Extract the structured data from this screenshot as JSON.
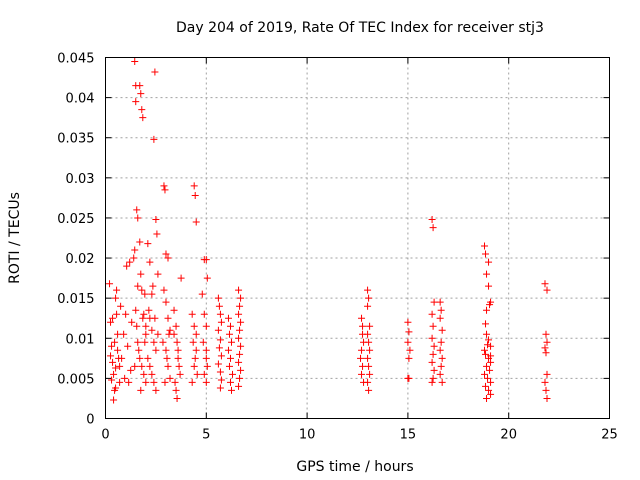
{
  "chart_data": {
    "type": "scatter",
    "title": "Day 204 of 2019, Rate Of TEC Index for receiver stj3",
    "xlabel": "GPS time / hours",
    "ylabel": "ROTI / TECUs",
    "xlim": [
      0,
      25
    ],
    "ylim": [
      0,
      0.045
    ],
    "x_ticks": [
      0,
      5,
      10,
      15,
      20,
      25
    ],
    "x_tick_labels": [
      "0",
      "5",
      "10",
      "15",
      "20",
      "25"
    ],
    "y_ticks": [
      0,
      0.005,
      0.01,
      0.015,
      0.02,
      0.025,
      0.03,
      0.035,
      0.04,
      0.045
    ],
    "y_tick_labels": [
      "0",
      "0.005",
      "0.01",
      "0.015",
      "0.02",
      "0.025",
      "0.03",
      "0.035",
      "0.04",
      "0.045"
    ],
    "grid": true,
    "marker": "+",
    "color": "#ff0000",
    "series": [
      {
        "name": "ROTI",
        "points": [
          [
            0.2,
            0.0168
          ],
          [
            0.25,
            0.012
          ],
          [
            0.3,
            0.009
          ],
          [
            0.35,
            0.007
          ],
          [
            0.4,
            0.0055
          ],
          [
            0.45,
            0.0035
          ],
          [
            0.4,
            0.0023
          ],
          [
            0.5,
            0.0063
          ],
          [
            0.5,
            0.015
          ],
          [
            0.55,
            0.016
          ],
          [
            0.6,
            0.0105
          ],
          [
            0.6,
            0.0085
          ],
          [
            0.65,
            0.0075
          ],
          [
            0.7,
            0.0045
          ],
          [
            0.75,
            0.014
          ],
          [
            0.3,
            0.0048
          ],
          [
            0.45,
            0.0095
          ],
          [
            0.35,
            0.0125
          ],
          [
            0.55,
            0.013
          ],
          [
            0.7,
            0.0065
          ],
          [
            0.25,
            0.0078
          ],
          [
            0.5,
            0.0038
          ],
          [
            0.8,
            0.0075
          ],
          [
            0.9,
            0.0105
          ],
          [
            1.0,
            0.013
          ],
          [
            1.05,
            0.019
          ],
          [
            1.1,
            0.009
          ],
          [
            1.2,
            0.0195
          ],
          [
            1.25,
            0.006
          ],
          [
            1.3,
            0.012
          ],
          [
            1.15,
            0.0045
          ],
          [
            0.95,
            0.005
          ],
          [
            1.4,
            0.02
          ],
          [
            1.45,
            0.0445
          ],
          [
            1.5,
            0.0395
          ],
          [
            1.55,
            0.026
          ],
          [
            1.6,
            0.025
          ],
          [
            1.5,
            0.0415
          ],
          [
            1.45,
            0.021
          ],
          [
            1.6,
            0.0165
          ],
          [
            1.7,
            0.0415
          ],
          [
            1.75,
            0.0405
          ],
          [
            1.8,
            0.0385
          ],
          [
            1.85,
            0.0375
          ],
          [
            1.7,
            0.022
          ],
          [
            1.75,
            0.018
          ],
          [
            1.8,
            0.016
          ],
          [
            1.9,
            0.013
          ],
          [
            1.95,
            0.0155
          ],
          [
            2.0,
            0.0115
          ],
          [
            2.0,
            0.0105
          ],
          [
            1.5,
            0.0135
          ],
          [
            1.6,
            0.0095
          ],
          [
            1.65,
            0.0085
          ],
          [
            1.7,
            0.0075
          ],
          [
            1.8,
            0.0065
          ],
          [
            1.9,
            0.0055
          ],
          [
            2.0,
            0.0045
          ],
          [
            1.55,
            0.0115
          ],
          [
            1.85,
            0.0125
          ],
          [
            1.95,
            0.0095
          ],
          [
            1.45,
            0.0065
          ],
          [
            1.75,
            0.0035
          ],
          [
            2.1,
            0.0218
          ],
          [
            2.2,
            0.0195
          ],
          [
            2.3,
            0.0155
          ],
          [
            2.35,
            0.0165
          ],
          [
            2.4,
            0.0348
          ],
          [
            2.45,
            0.0432
          ],
          [
            2.5,
            0.0248
          ],
          [
            2.55,
            0.023
          ],
          [
            2.6,
            0.018
          ],
          [
            2.2,
            0.0125
          ],
          [
            2.3,
            0.011
          ],
          [
            2.4,
            0.0095
          ],
          [
            2.5,
            0.0085
          ],
          [
            2.1,
            0.0075
          ],
          [
            2.2,
            0.0065
          ],
          [
            2.3,
            0.0055
          ],
          [
            2.4,
            0.0045
          ],
          [
            2.5,
            0.0035
          ],
          [
            2.15,
            0.0135
          ],
          [
            2.45,
            0.0125
          ],
          [
            2.6,
            0.0105
          ],
          [
            2.9,
            0.029
          ],
          [
            2.95,
            0.0285
          ],
          [
            3.0,
            0.0205
          ],
          [
            3.1,
            0.02
          ],
          [
            2.9,
            0.016
          ],
          [
            3.0,
            0.0145
          ],
          [
            3.1,
            0.0125
          ],
          [
            3.2,
            0.011
          ],
          [
            2.85,
            0.0095
          ],
          [
            3.0,
            0.0085
          ],
          [
            3.1,
            0.0065
          ],
          [
            3.2,
            0.005
          ],
          [
            2.95,
            0.0045
          ],
          [
            3.05,
            0.0075
          ],
          [
            3.15,
            0.0105
          ],
          [
            3.4,
            0.0135
          ],
          [
            3.5,
            0.0115
          ],
          [
            3.55,
            0.0095
          ],
          [
            3.6,
            0.0085
          ],
          [
            3.65,
            0.0065
          ],
          [
            3.7,
            0.0055
          ],
          [
            3.45,
            0.0045
          ],
          [
            3.5,
            0.0035
          ],
          [
            3.55,
            0.0025
          ],
          [
            3.75,
            0.0175
          ],
          [
            3.6,
            0.0075
          ],
          [
            3.4,
            0.0105
          ],
          [
            4.4,
            0.029
          ],
          [
            4.45,
            0.0278
          ],
          [
            4.5,
            0.0245
          ],
          [
            4.3,
            0.013
          ],
          [
            4.4,
            0.0115
          ],
          [
            4.35,
            0.0095
          ],
          [
            4.5,
            0.0085
          ],
          [
            4.45,
            0.0075
          ],
          [
            4.4,
            0.0065
          ],
          [
            4.55,
            0.0055
          ],
          [
            4.3,
            0.0045
          ],
          [
            4.5,
            0.0105
          ],
          [
            4.9,
            0.0198
          ],
          [
            5.0,
            0.0198
          ],
          [
            5.05,
            0.0175
          ],
          [
            4.8,
            0.0155
          ],
          [
            4.9,
            0.013
          ],
          [
            5.0,
            0.0115
          ],
          [
            4.85,
            0.0095
          ],
          [
            5.0,
            0.0085
          ],
          [
            5.05,
            0.0065
          ],
          [
            4.9,
            0.0055
          ],
          [
            5.0,
            0.0045
          ],
          [
            5.0,
            0.0075
          ],
          [
            5.6,
            0.015
          ],
          [
            5.65,
            0.014
          ],
          [
            5.7,
            0.013
          ],
          [
            5.75,
            0.012
          ],
          [
            5.6,
            0.011
          ],
          [
            5.7,
            0.0098
          ],
          [
            5.65,
            0.0088
          ],
          [
            5.75,
            0.0078
          ],
          [
            5.6,
            0.0068
          ],
          [
            5.7,
            0.0058
          ],
          [
            5.75,
            0.0048
          ],
          [
            5.7,
            0.0038
          ],
          [
            6.1,
            0.0125
          ],
          [
            6.2,
            0.0115
          ],
          [
            6.15,
            0.0105
          ],
          [
            6.25,
            0.0095
          ],
          [
            6.1,
            0.0085
          ],
          [
            6.2,
            0.0075
          ],
          [
            6.15,
            0.0065
          ],
          [
            6.3,
            0.0055
          ],
          [
            6.2,
            0.0045
          ],
          [
            6.25,
            0.0035
          ],
          [
            6.6,
            0.016
          ],
          [
            6.7,
            0.015
          ],
          [
            6.65,
            0.014
          ],
          [
            6.6,
            0.013
          ],
          [
            6.7,
            0.012
          ],
          [
            6.65,
            0.011
          ],
          [
            6.6,
            0.01
          ],
          [
            6.7,
            0.009
          ],
          [
            6.65,
            0.008
          ],
          [
            6.6,
            0.007
          ],
          [
            6.7,
            0.006
          ],
          [
            6.65,
            0.005
          ],
          [
            6.6,
            0.004
          ],
          [
            12.7,
            0.0125
          ],
          [
            12.75,
            0.0115
          ],
          [
            12.8,
            0.0095
          ],
          [
            12.7,
            0.0085
          ],
          [
            12.65,
            0.0075
          ],
          [
            12.75,
            0.0065
          ],
          [
            12.7,
            0.0055
          ],
          [
            12.8,
            0.0045
          ],
          [
            12.75,
            0.0105
          ],
          [
            13.0,
            0.016
          ],
          [
            13.05,
            0.015
          ],
          [
            13.0,
            0.014
          ],
          [
            13.1,
            0.0115
          ],
          [
            13.0,
            0.0105
          ],
          [
            13.05,
            0.0095
          ],
          [
            13.1,
            0.0085
          ],
          [
            13.0,
            0.0075
          ],
          [
            13.05,
            0.0065
          ],
          [
            13.1,
            0.0055
          ],
          [
            13.0,
            0.0045
          ],
          [
            13.05,
            0.0035
          ],
          [
            15.0,
            0.012
          ],
          [
            15.05,
            0.0108
          ],
          [
            15.0,
            0.0095
          ],
          [
            15.1,
            0.0085
          ],
          [
            15.05,
            0.0075
          ],
          [
            15.0,
            0.005
          ],
          [
            15.05,
            0.005
          ],
          [
            16.2,
            0.0248
          ],
          [
            16.25,
            0.0238
          ],
          [
            16.3,
            0.0145
          ],
          [
            16.2,
            0.013
          ],
          [
            16.25,
            0.0115
          ],
          [
            16.2,
            0.01
          ],
          [
            16.3,
            0.009
          ],
          [
            16.25,
            0.008
          ],
          [
            16.2,
            0.007
          ],
          [
            16.3,
            0.006
          ],
          [
            16.25,
            0.005
          ],
          [
            16.2,
            0.0045
          ],
          [
            16.6,
            0.0145
          ],
          [
            16.65,
            0.0135
          ],
          [
            16.6,
            0.0125
          ],
          [
            16.7,
            0.011
          ],
          [
            16.65,
            0.0095
          ],
          [
            16.6,
            0.0085
          ],
          [
            16.7,
            0.0075
          ],
          [
            16.65,
            0.0065
          ],
          [
            16.6,
            0.0055
          ],
          [
            16.7,
            0.0045
          ],
          [
            18.8,
            0.0215
          ],
          [
            18.85,
            0.0205
          ],
          [
            18.9,
            0.018
          ],
          [
            19.0,
            0.0165
          ],
          [
            19.1,
            0.0145
          ],
          [
            19.05,
            0.0142
          ],
          [
            18.9,
            0.0135
          ],
          [
            18.85,
            0.0118
          ],
          [
            18.9,
            0.0105
          ],
          [
            19.0,
            0.0098
          ],
          [
            19.1,
            0.009
          ],
          [
            18.8,
            0.0085
          ],
          [
            18.85,
            0.008
          ],
          [
            19.0,
            0.0075
          ],
          [
            19.1,
            0.007
          ],
          [
            18.9,
            0.0065
          ],
          [
            19.05,
            0.006
          ],
          [
            18.8,
            0.0055
          ],
          [
            18.95,
            0.005
          ],
          [
            19.1,
            0.0045
          ],
          [
            18.85,
            0.004
          ],
          [
            19.0,
            0.0035
          ],
          [
            19.1,
            0.003
          ],
          [
            18.9,
            0.0025
          ],
          [
            19.0,
            0.0195
          ],
          [
            18.95,
            0.0092
          ],
          [
            19.1,
            0.0078
          ],
          [
            21.8,
            0.0168
          ],
          [
            21.9,
            0.016
          ],
          [
            21.85,
            0.0105
          ],
          [
            21.9,
            0.0095
          ],
          [
            21.8,
            0.0088
          ],
          [
            21.85,
            0.0082
          ],
          [
            21.9,
            0.0055
          ],
          [
            21.8,
            0.0045
          ],
          [
            21.85,
            0.0035
          ],
          [
            21.9,
            0.0025
          ]
        ]
      }
    ]
  }
}
